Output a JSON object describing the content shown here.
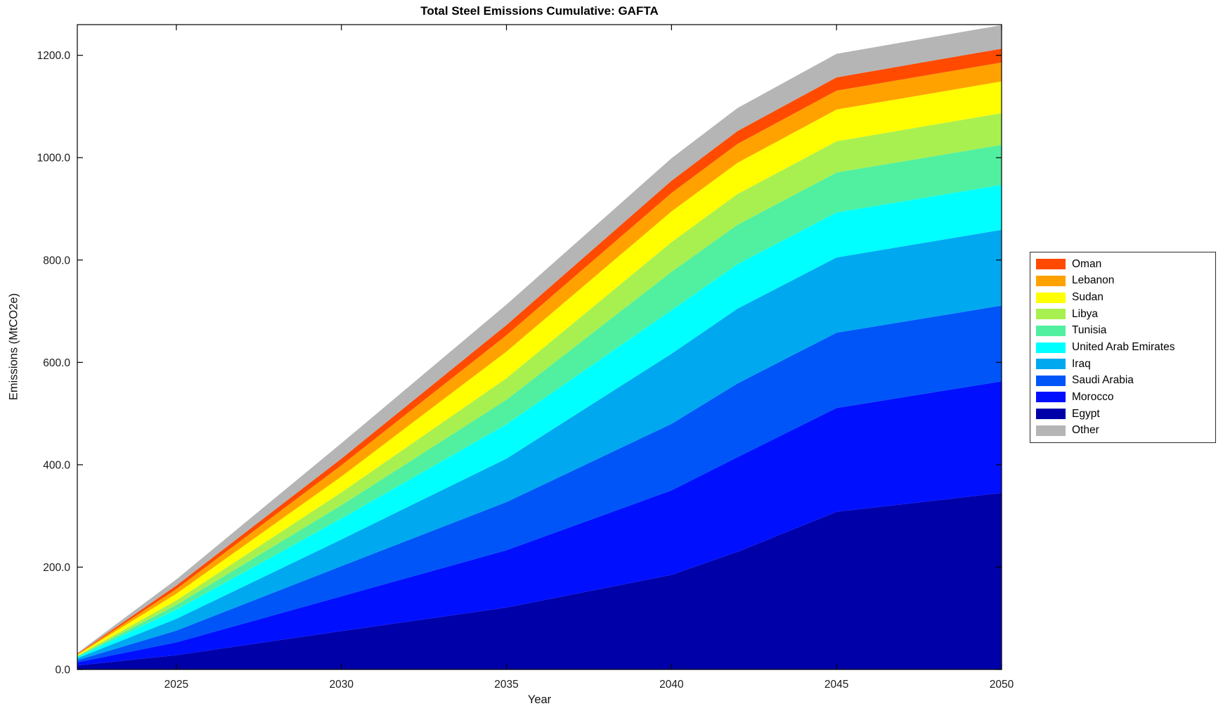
{
  "title": "Total Steel Emissions Cumulative: GAFTA",
  "xlabel": "Year",
  "ylabel": "Emissions (MtCO2e)",
  "background": "#FFFFFF",
  "axis_color": "#000000",
  "tick_label_color": "#1a1a1a",
  "chart_data": {
    "type": "area",
    "stacked": true,
    "title": "Total Steel Emissions Cumulative: GAFTA",
    "xlabel": "Year",
    "ylabel": "Emissions (MtCO2e)",
    "x": [
      2022,
      2025,
      2030,
      2035,
      2040,
      2042,
      2045,
      2050
    ],
    "series": [
      {
        "name": "Egypt",
        "color": "#0000A8",
        "values": [
          8,
          28,
          75,
          121,
          185,
          230,
          308,
          345
        ]
      },
      {
        "name": "Morocco",
        "color": "#0010FF",
        "values": [
          6,
          25,
          68,
          112,
          165,
          185,
          203,
          218
        ]
      },
      {
        "name": "Saudi Arabia",
        "color": "#0055F8",
        "values": [
          4,
          23,
          59,
          94,
          130,
          144,
          147,
          148
        ]
      },
      {
        "name": "Iraq",
        "color": "#00A8F0",
        "values": [
          4,
          23,
          52,
          85,
          137,
          146,
          147,
          148
        ]
      },
      {
        "name": "United Arab Emirates",
        "color": "#00FFFF",
        "values": [
          2,
          18,
          41,
          67,
          85,
          87,
          88,
          88
        ]
      },
      {
        "name": "Tunisia",
        "color": "#50F0A0",
        "values": [
          1.5,
          9,
          26,
          48,
          75,
          77,
          78,
          78
        ]
      },
      {
        "name": "Libya",
        "color": "#A8F04F",
        "values": [
          1.5,
          9,
          25,
          42,
          58,
          60,
          61,
          62
        ]
      },
      {
        "name": "Sudan",
        "color": "#FFFF00",
        "values": [
          1.5,
          13,
          31,
          52,
          60,
          61,
          62,
          62
        ]
      },
      {
        "name": "Lebanon",
        "color": "#FFA200",
        "values": [
          1,
          9,
          22,
          32,
          36,
          37,
          37,
          37
        ]
      },
      {
        "name": "Oman",
        "color": "#FF4A00",
        "values": [
          1,
          7,
          13,
          20,
          24,
          25,
          26,
          27
        ]
      },
      {
        "name": "Other",
        "color": "#B5B5B5",
        "values": [
          1.5,
          12,
          30,
          40,
          44,
          45,
          46,
          46
        ]
      }
    ],
    "legend": [
      "Oman",
      "Lebanon",
      "Sudan",
      "Libya",
      "Tunisia",
      "United Arab Emirates",
      "Iraq",
      "Saudi Arabia",
      "Morocco",
      "Egypt",
      "Other"
    ],
    "legend_position": "right",
    "grid": false,
    "xlim": [
      2022,
      2050
    ],
    "ylim": [
      0,
      1260
    ],
    "xticks": [
      2025,
      2030,
      2035,
      2040,
      2045,
      2050
    ],
    "yticks": [
      0,
      200,
      400,
      600,
      800,
      1000,
      1200
    ],
    "ytick_labels": [
      "0.0",
      "200.0",
      "400.0",
      "600.0",
      "800.0",
      "1000.0",
      "1200.0"
    ]
  }
}
